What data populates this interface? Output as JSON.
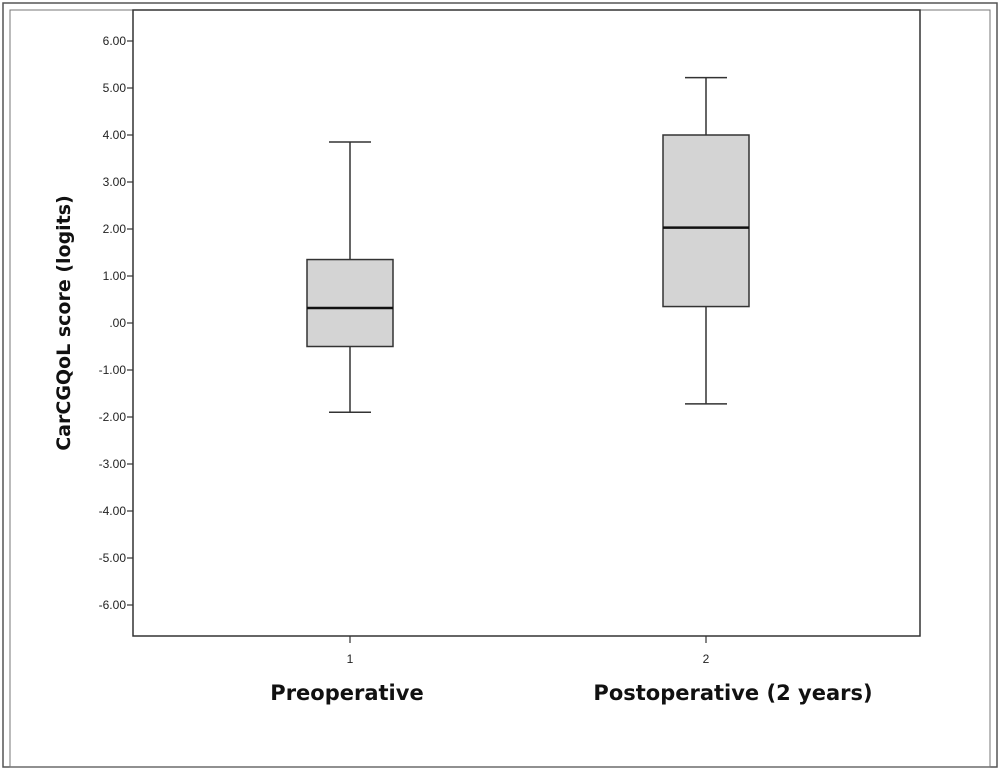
{
  "chart_data": {
    "type": "boxplot",
    "ylabel": "CarCGQoL score (logits)",
    "ylim": [
      -6.5,
      6.6
    ],
    "yticks": [
      {
        "value": 6,
        "label": "6.00"
      },
      {
        "value": 5,
        "label": "5.00"
      },
      {
        "value": 4,
        "label": "4.00"
      },
      {
        "value": 3,
        "label": "3.00"
      },
      {
        "value": 2,
        "label": "2.00"
      },
      {
        "value": 1,
        "label": "1.00"
      },
      {
        "value": 0,
        "label": ".00"
      },
      {
        "value": -1,
        "label": "-1.00"
      },
      {
        "value": -2,
        "label": "-2.00"
      },
      {
        "value": -3,
        "label": "-3.00"
      },
      {
        "value": -4,
        "label": "-4.00"
      },
      {
        "value": -5,
        "label": "-5.00"
      },
      {
        "value": -6,
        "label": "-6.00"
      }
    ],
    "grid": false,
    "categories": [
      "1",
      "2"
    ],
    "group_labels": [
      "Preoperative",
      "Postoperative (2 years)"
    ],
    "boxes": [
      {
        "category": "1",
        "min": -1.9,
        "q1": -0.5,
        "median": 0.32,
        "q3": 1.35,
        "max": 3.85
      },
      {
        "category": "2",
        "min": -1.72,
        "q1": 0.35,
        "median": 2.03,
        "q3": 4.0,
        "max": 5.22
      }
    ],
    "colors": {
      "box_fill": "#d4d4d4",
      "stroke": "#333333",
      "median": "#111111"
    }
  }
}
